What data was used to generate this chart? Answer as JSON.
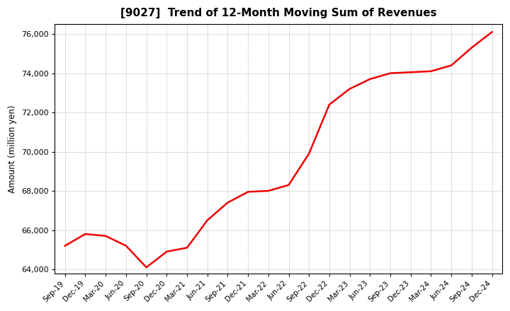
{
  "title": "[9027]  Trend of 12-Month Moving Sum of Revenues",
  "ylabel": "Amount (million yen)",
  "line_color": "#ee0000",
  "line_width": 1.8,
  "background_color": "#ffffff",
  "grid_color": "#999999",
  "ylim": [
    63800,
    76500
  ],
  "yticks": [
    64000,
    66000,
    68000,
    70000,
    72000,
    74000,
    76000
  ],
  "x_labels": [
    "Sep-19",
    "Dec-19",
    "Mar-20",
    "Jun-20",
    "Sep-20",
    "Dec-20",
    "Mar-21",
    "Jun-21",
    "Sep-21",
    "Dec-21",
    "Mar-22",
    "Jun-22",
    "Sep-22",
    "Dec-22",
    "Mar-23",
    "Jun-23",
    "Sep-23",
    "Dec-23",
    "Mar-24",
    "Jun-24",
    "Sep-24",
    "Dec-24"
  ],
  "data": [
    [
      "Sep-19",
      65200
    ],
    [
      "Dec-19",
      65800
    ],
    [
      "Mar-20",
      65700
    ],
    [
      "Jun-20",
      65200
    ],
    [
      "Sep-20",
      64100
    ],
    [
      "Dec-20",
      64900
    ],
    [
      "Mar-21",
      65100
    ],
    [
      "Jun-21",
      66500
    ],
    [
      "Sep-21",
      67400
    ],
    [
      "Dec-21",
      67950
    ],
    [
      "Mar-22",
      68000
    ],
    [
      "Jun-22",
      68300
    ],
    [
      "Sep-22",
      69900
    ],
    [
      "Dec-22",
      72400
    ],
    [
      "Mar-23",
      73200
    ],
    [
      "Jun-23",
      73700
    ],
    [
      "Sep-23",
      74000
    ],
    [
      "Dec-23",
      74050
    ],
    [
      "Mar-24",
      74100
    ],
    [
      "Jun-24",
      74400
    ],
    [
      "Sep-24",
      75300
    ],
    [
      "Dec-24",
      76100
    ]
  ]
}
